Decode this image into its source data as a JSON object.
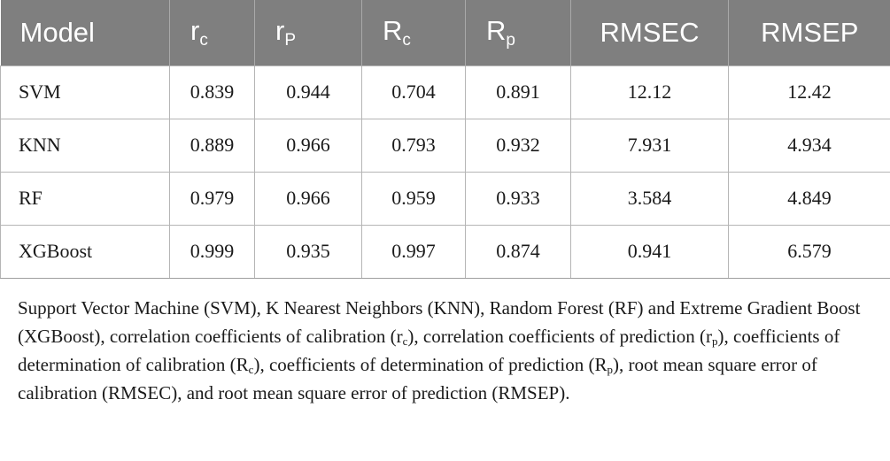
{
  "table": {
    "headers": [
      {
        "main": "Model",
        "sub": ""
      },
      {
        "main": "r",
        "sub": "c"
      },
      {
        "main": "r",
        "sub": "P"
      },
      {
        "main": "R",
        "sub": "c"
      },
      {
        "main": "R",
        "sub": "p"
      },
      {
        "main": "RMSEC",
        "sub": ""
      },
      {
        "main": "RMSEP",
        "sub": ""
      }
    ],
    "rows": [
      [
        "SVM",
        "0.839",
        "0.944",
        "0.704",
        "0.891",
        "12.12",
        "12.42"
      ],
      [
        "KNN",
        "0.889",
        "0.966",
        "0.793",
        "0.932",
        "7.931",
        "4.934"
      ],
      [
        "RF",
        "0.979",
        "0.966",
        "0.959",
        "0.933",
        "3.584",
        "4.849"
      ],
      [
        "XGBoost",
        "0.999",
        "0.935",
        "0.997",
        "0.874",
        "0.941",
        "6.579"
      ]
    ]
  },
  "footnote": [
    {
      "t": "Support Vector Machine (SVM), K Nearest Neighbors (KNN), Random Forest (RF) and Extreme Gradient Boost (XGBoost), correlation coefficients of calibration (r"
    },
    {
      "t": "c",
      "sub": true
    },
    {
      "t": "), correlation coefficients of prediction (r"
    },
    {
      "t": "p",
      "sub": true
    },
    {
      "t": "), coefficients of determination of calibration (R"
    },
    {
      "t": "c",
      "sub": true
    },
    {
      "t": "), coefficients of determination of prediction (R"
    },
    {
      "t": "p",
      "sub": true
    },
    {
      "t": "), root mean square error of calibration (RMSEC), and root mean square error of prediction (RMSEP)."
    }
  ]
}
